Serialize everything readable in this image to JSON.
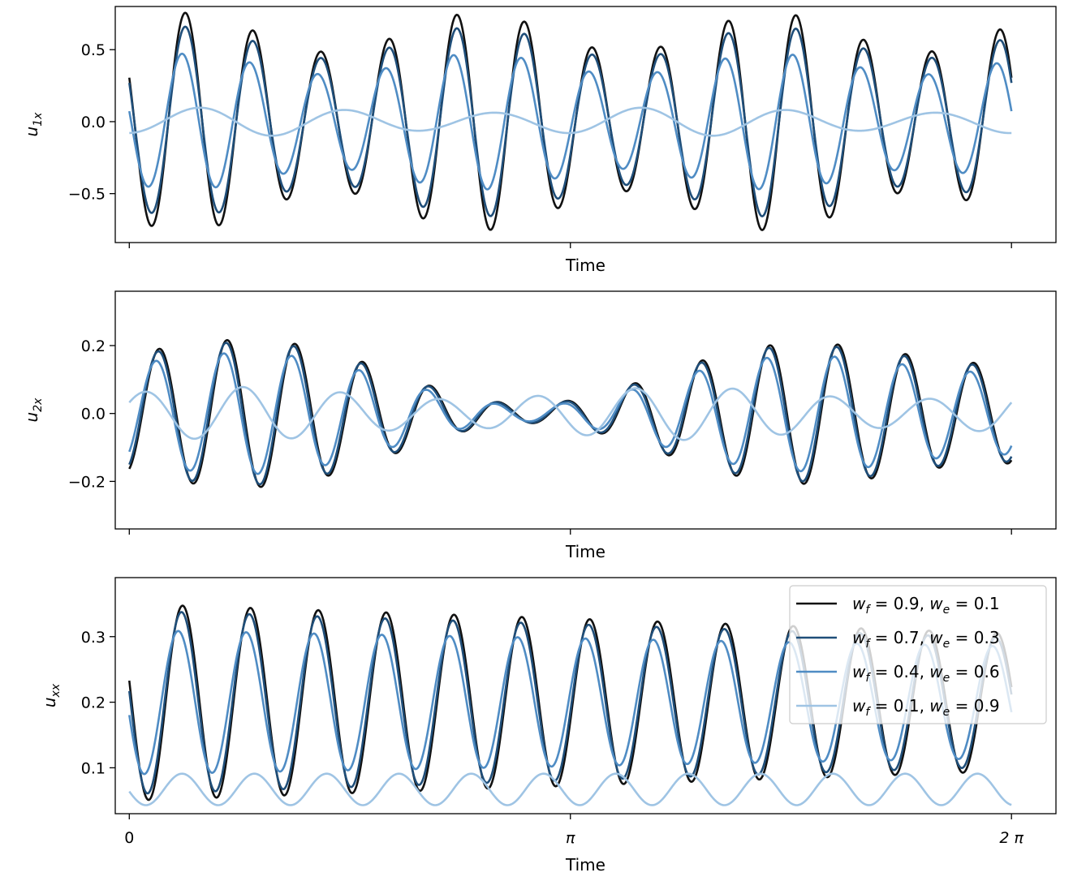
{
  "colors": {
    "series": [
      "#111111",
      "#1f4e79",
      "#4f8cc4",
      "#9fc4e4"
    ],
    "axes": "#000000",
    "background": "#ffffff"
  },
  "chart_data": [
    {
      "type": "line",
      "xlabel": "Time",
      "ylabel": {
        "base": "u",
        "sub": "1x"
      },
      "xlim": [
        -0.1,
        6.6
      ],
      "ylim": [
        -0.84,
        0.8
      ],
      "yticks": [
        {
          "value": -0.5,
          "label": "−0.5"
        },
        {
          "value": 0.0,
          "label": "0.0"
        },
        {
          "value": 0.5,
          "label": "0.5"
        }
      ],
      "xticks": [
        {
          "value": 0,
          "label": ""
        },
        {
          "value": 3.14159,
          "label": ""
        },
        {
          "value": 6.28319,
          "label": ""
        }
      ],
      "series_params": [
        {
          "amp": 0.62,
          "freq": 13,
          "phase": 1.1,
          "mod_amp": 0.22,
          "mod_freq": 3,
          "mod_phase": 0.4
        },
        {
          "amp": 0.55,
          "freq": 13,
          "phase": 1.1,
          "mod_amp": 0.2,
          "mod_freq": 3,
          "mod_phase": 0.4
        },
        {
          "amp": 0.4,
          "freq": 13,
          "phase": 1.4,
          "mod_amp": 0.18,
          "mod_freq": 3,
          "mod_phase": 0.4
        },
        {
          "amp": 0.08,
          "freq": 6,
          "phase": 3.3,
          "mod_amp": 0.25,
          "mod_freq": 2,
          "mod_phase": 0
        }
      ]
    },
    {
      "type": "line",
      "xlabel": "Time",
      "ylabel": {
        "base": "u",
        "sub": "2x"
      },
      "xlim": [
        -0.1,
        6.6
      ],
      "ylim": [
        -0.34,
        0.36
      ],
      "yticks": [
        {
          "value": -0.2,
          "label": "−0.2"
        },
        {
          "value": 0.0,
          "label": "0.0"
        },
        {
          "value": 0.2,
          "label": "0.2"
        }
      ],
      "xticks": [
        {
          "value": 0,
          "label": ""
        },
        {
          "value": 3.14159,
          "label": ""
        },
        {
          "value": 6.28319,
          "label": ""
        }
      ],
      "series_params": [
        {
          "amp": 0.28,
          "freq": 13,
          "phase": -1.2,
          "mod_amp": 0,
          "mod_freq": 0,
          "mod_phase": 0,
          "env": "hump"
        },
        {
          "amp": 0.27,
          "freq": 13,
          "phase": -1.1,
          "mod_amp": 0,
          "mod_freq": 0,
          "mod_phase": 0,
          "env": "hump"
        },
        {
          "amp": 0.23,
          "freq": 13,
          "phase": -0.9,
          "mod_amp": 0,
          "mod_freq": 0,
          "mod_phase": 0,
          "env": "hump"
        },
        {
          "amp": 0.06,
          "freq": 9,
          "phase": -1.0,
          "mod_amp": 0.3,
          "mod_freq": 2,
          "mod_phase": 0
        }
      ]
    },
    {
      "type": "line",
      "xlabel": "Time",
      "ylabel": {
        "base": "u",
        "sub": "xx"
      },
      "xlim": [
        -0.1,
        6.6
      ],
      "ylim": [
        0.03,
        0.39
      ],
      "yticks": [
        {
          "value": 0.1,
          "label": "0.1"
        },
        {
          "value": 0.2,
          "label": "0.2"
        },
        {
          "value": 0.3,
          "label": "0.3"
        }
      ],
      "xticks": [
        {
          "value": 0,
          "label": "0"
        },
        {
          "value": 3.14159,
          "label": "π"
        },
        {
          "value": 6.28319,
          "label": "2 π"
        }
      ],
      "legend": {
        "position": "upper right",
        "entries": [
          {
            "wf": "0.9",
            "we": "0.1"
          },
          {
            "wf": "0.7",
            "we": "0.3"
          },
          {
            "wf": "0.4",
            "we": "0.6"
          },
          {
            "wf": "0.1",
            "we": "0.9"
          }
        ]
      },
      "series_params": [
        {
          "base": 0.2,
          "amp": 0.15,
          "freq": 13,
          "phase": 1.35,
          "decay": 0.6
        },
        {
          "base": 0.2,
          "amp": 0.14,
          "freq": 13,
          "phase": 1.45,
          "decay": 0.6
        },
        {
          "base": 0.2,
          "amp": 0.11,
          "freq": 13,
          "phase": 1.75,
          "decay": 0.45
        },
        {
          "base": 0.067,
          "amp": 0.024,
          "freq": 12.2,
          "phase": 1.7,
          "decay": 0
        }
      ]
    }
  ]
}
